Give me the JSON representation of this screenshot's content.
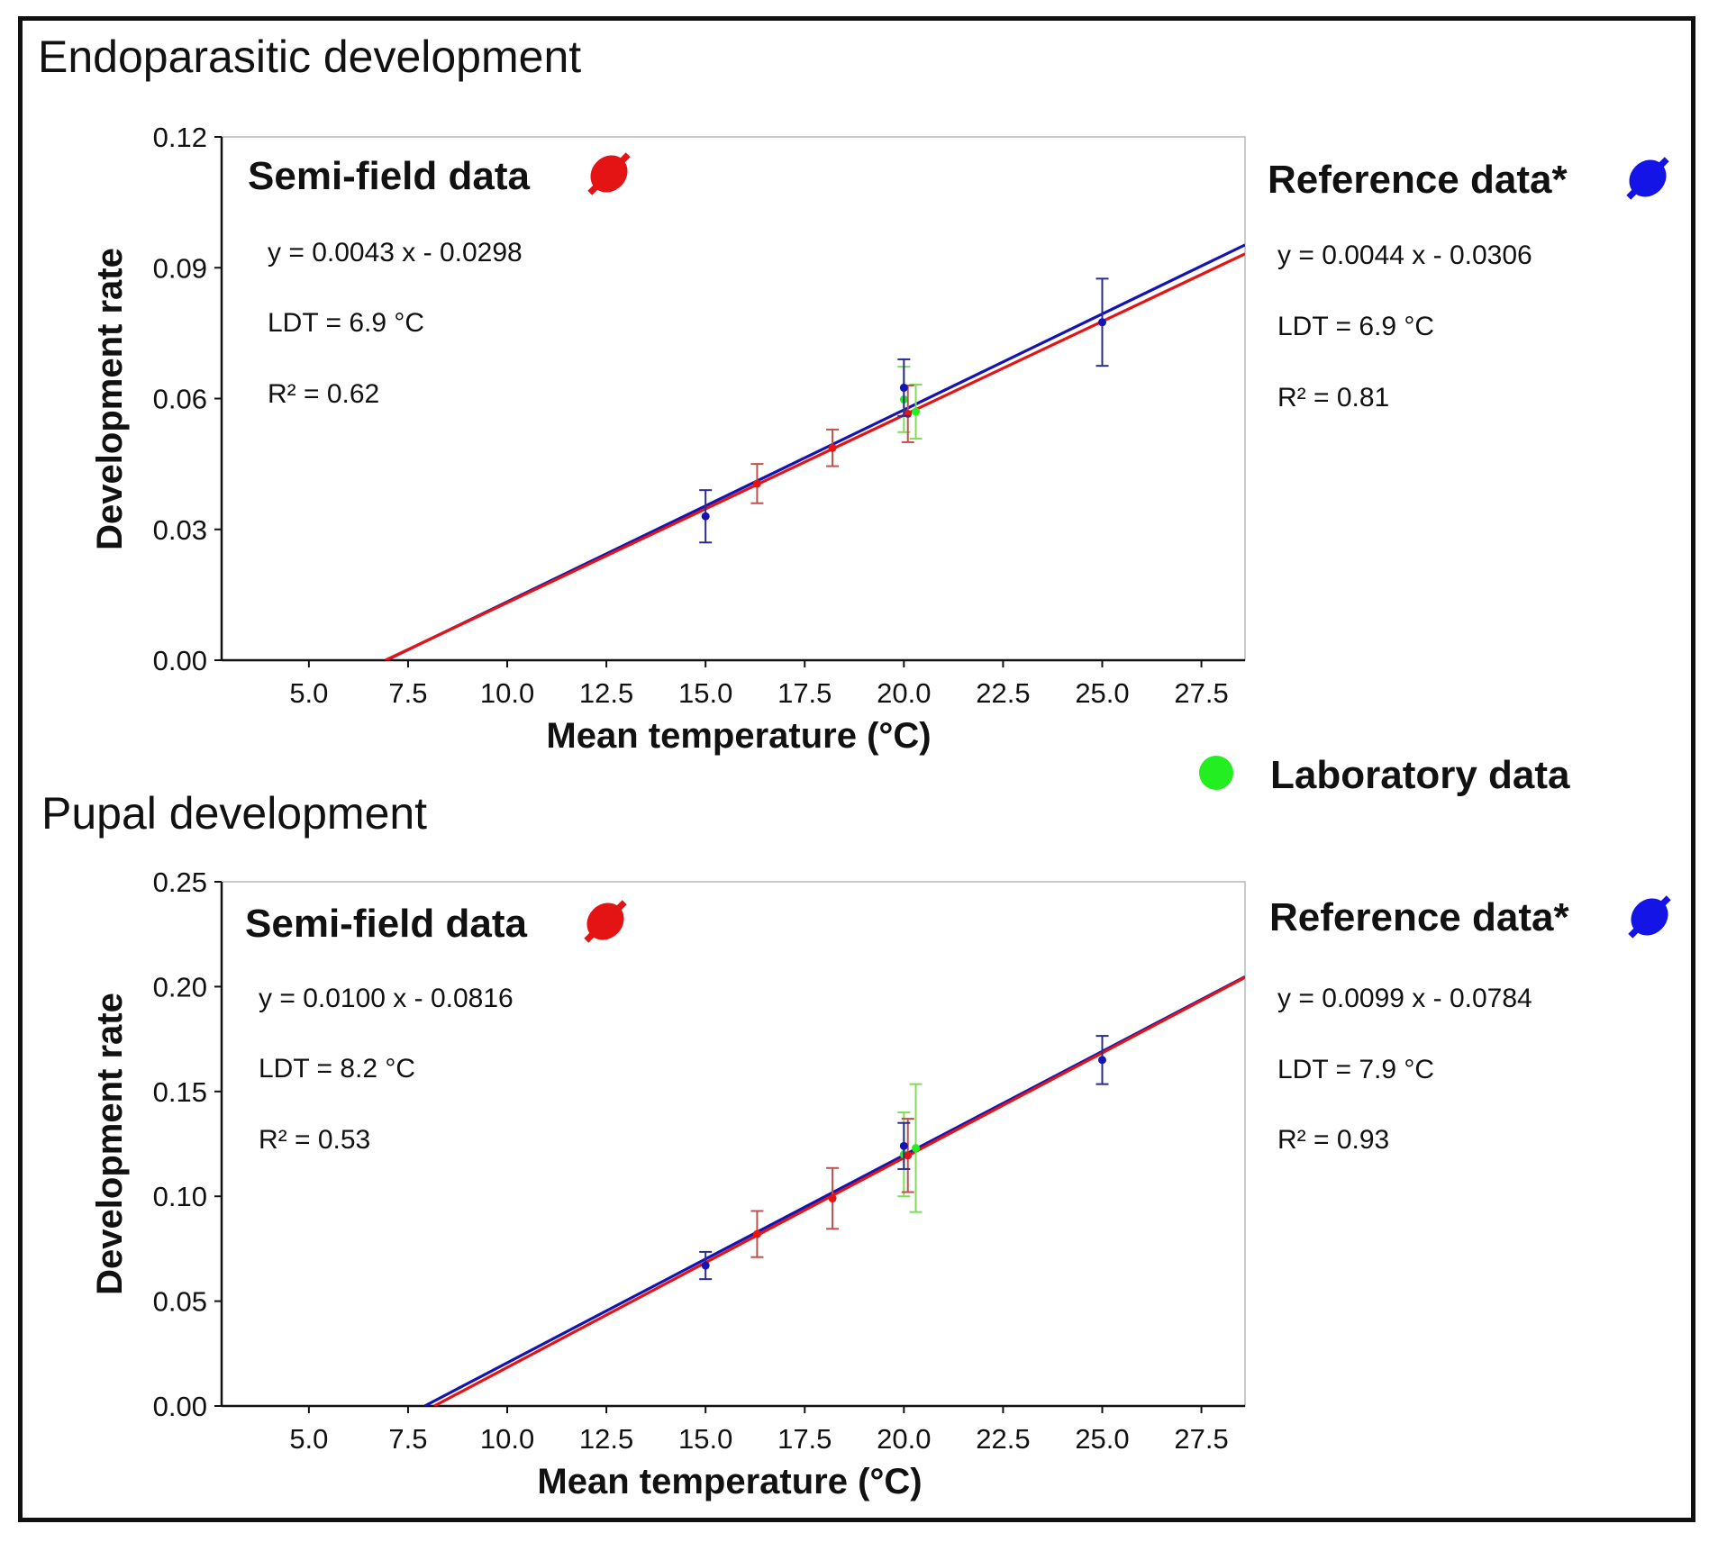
{
  "colors": {
    "semi_field": "#e41414",
    "reference": "#1414b4",
    "laboratory": "#22ee22",
    "semi_field_err": "#c0504d",
    "reference_err": "#2b2b8f",
    "laboratory_err": "#7fdc5a"
  },
  "legend": {
    "laboratory_label": "Laboratory data",
    "laboratory_icon": "green-dot-icon",
    "semi_field_icon": "red-dumbbell-icon",
    "reference_icon": "blue-dumbbell-icon"
  },
  "chart_data": [
    {
      "type": "scatter",
      "title": "Endoparasitic development",
      "xlabel": "Mean temperature (°C)",
      "ylabel": "Development rate",
      "xlim": [
        2.8,
        28.6
      ],
      "ylim": [
        0,
        0.12
      ],
      "xticks": [
        "5.0",
        "7.5",
        "10.0",
        "12.5",
        "15.0",
        "17.5",
        "20.0",
        "22.5",
        "25.0",
        "27.5"
      ],
      "yticks": [
        "0.00",
        "0.03",
        "0.06",
        "0.09",
        "0.12"
      ],
      "semi_field": {
        "title": "Semi-field data",
        "equation": "y = 0.0043 x - 0.0298",
        "ldt": "LDT = 6.9 °C",
        "r2": "R² = 0.62",
        "slope": 0.0043,
        "intercept": -0.0298,
        "points": [
          {
            "x": 16.3,
            "y": 0.0405,
            "err": 0.0045
          },
          {
            "x": 18.2,
            "y": 0.0487,
            "err": 0.0042
          },
          {
            "x": 20.1,
            "y": 0.0565,
            "err": 0.0065
          }
        ]
      },
      "reference": {
        "title": "Reference data*",
        "equation": "y = 0.0044 x - 0.0306",
        "ldt": "LDT = 6.9 °C",
        "r2": "R² = 0.81",
        "slope": 0.0044,
        "intercept": -0.0306,
        "points": [
          {
            "x": 15.0,
            "y": 0.033,
            "err": 0.006
          },
          {
            "x": 20.0,
            "y": 0.0625,
            "err": 0.0065
          },
          {
            "x": 25.0,
            "y": 0.0775,
            "err": 0.01
          }
        ]
      },
      "laboratory": {
        "points": [
          {
            "x": 20.0,
            "y": 0.0598,
            "err": 0.0075
          },
          {
            "x": 20.3,
            "y": 0.057,
            "err": 0.0062
          }
        ]
      }
    },
    {
      "type": "scatter",
      "title": "Pupal development",
      "xlabel": "Mean temperature (°C)",
      "ylabel": "Development rate",
      "xlim": [
        2.8,
        28.6
      ],
      "ylim": [
        0,
        0.25
      ],
      "xticks": [
        "5.0",
        "7.5",
        "10.0",
        "12.5",
        "15.0",
        "17.5",
        "20.0",
        "22.5",
        "25.0",
        "27.5"
      ],
      "yticks": [
        "0.00",
        "0.05",
        "0.10",
        "0.15",
        "0.20",
        "0.25"
      ],
      "semi_field": {
        "title": "Semi-field data",
        "equation": "y = 0.0100 x - 0.0816",
        "ldt": "LDT = 8.2 °C",
        "r2": "R² = 0.53",
        "slope": 0.01,
        "intercept": -0.0816,
        "points": [
          {
            "x": 16.3,
            "y": 0.082,
            "err": 0.011
          },
          {
            "x": 18.2,
            "y": 0.099,
            "err": 0.0145
          },
          {
            "x": 20.1,
            "y": 0.1195,
            "err": 0.0175
          }
        ]
      },
      "reference": {
        "title": "Reference data*",
        "equation": "y = 0.0099 x - 0.0784",
        "ldt": "LDT = 7.9 °C",
        "r2": "R² = 0.93",
        "slope": 0.0099,
        "intercept": -0.0784,
        "points": [
          {
            "x": 15.0,
            "y": 0.067,
            "err": 0.0065
          },
          {
            "x": 20.0,
            "y": 0.124,
            "err": 0.011
          },
          {
            "x": 25.0,
            "y": 0.165,
            "err": 0.0115
          }
        ]
      },
      "laboratory": {
        "points": [
          {
            "x": 20.0,
            "y": 0.12,
            "err": 0.02
          },
          {
            "x": 20.3,
            "y": 0.123,
            "err": 0.0305
          }
        ]
      }
    }
  ]
}
